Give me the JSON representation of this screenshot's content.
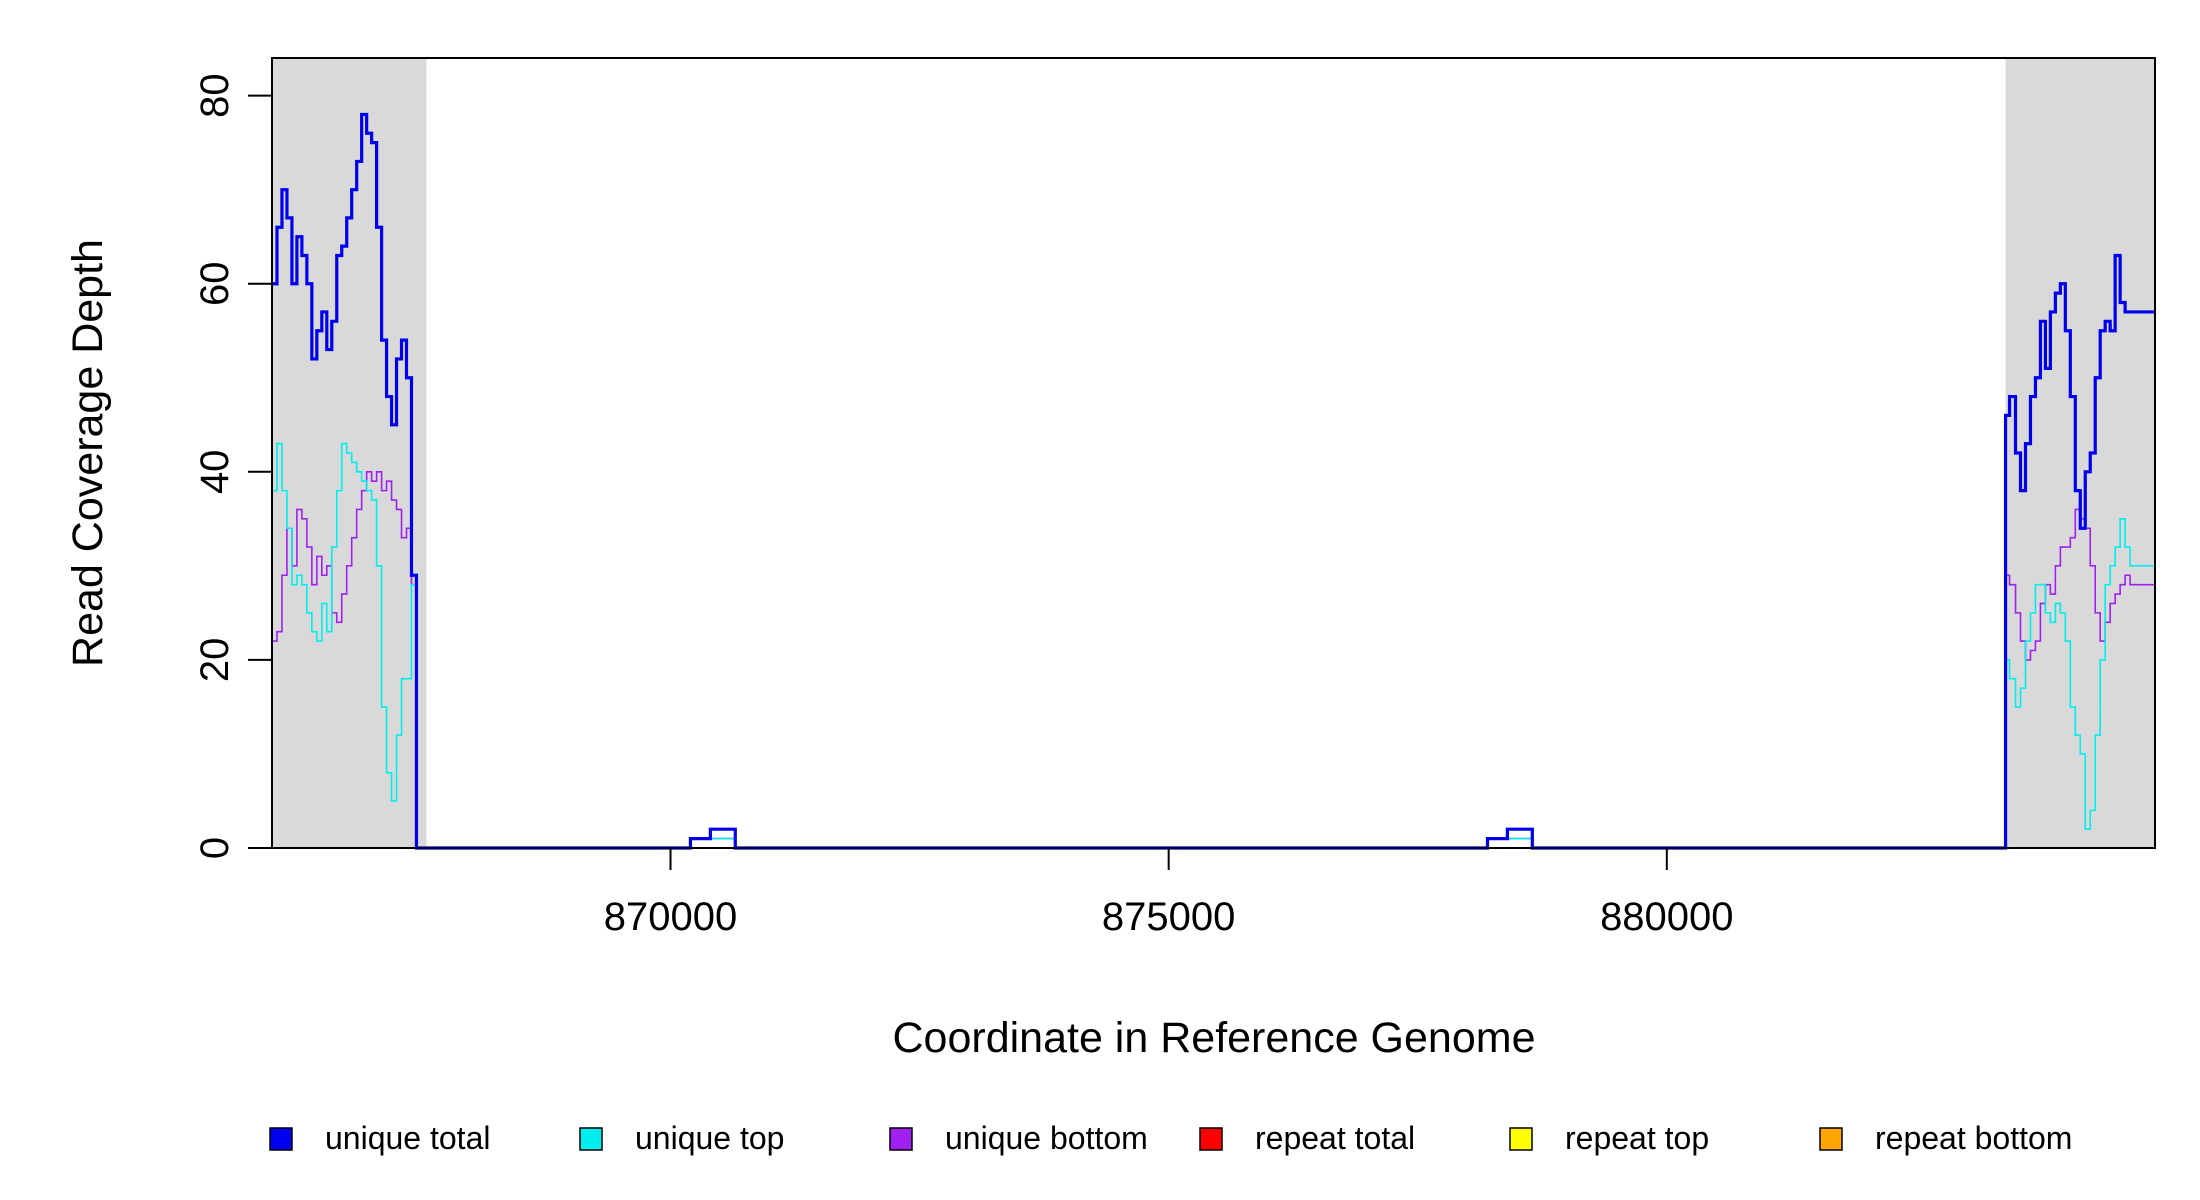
{
  "chart_data": {
    "type": "line",
    "xlabel": "Coordinate in Reference Genome",
    "ylabel": "Read Coverage Depth",
    "xlim": [
      866000,
      884900
    ],
    "ylim": [
      0,
      84
    ],
    "x_ticks": [
      {
        "value": 870000,
        "label": "870000"
      },
      {
        "value": 875000,
        "label": "875000"
      },
      {
        "value": 880000,
        "label": "880000"
      }
    ],
    "y_ticks": [
      {
        "value": 0,
        "label": "0"
      },
      {
        "value": 20,
        "label": "20"
      },
      {
        "value": 40,
        "label": "40"
      },
      {
        "value": 60,
        "label": "60"
      },
      {
        "value": 80,
        "label": "80"
      }
    ],
    "shaded_regions": [
      [
        866000,
        867550
      ],
      [
        883400,
        884900
      ]
    ],
    "shade_color": "#d9d9d9",
    "grid": false,
    "legend_position": "bottom",
    "series": [
      {
        "name": "unique total",
        "color": "#0000ee",
        "weight": "bold",
        "x": [
          866000,
          866050,
          866100,
          866150,
          866200,
          866250,
          866300,
          866350,
          866400,
          866450,
          866500,
          866550,
          866600,
          866650,
          866700,
          866750,
          866800,
          866850,
          866900,
          866950,
          867000,
          867050,
          867100,
          867150,
          867200,
          867250,
          867300,
          867350,
          867400,
          867450,
          867500,
          867530,
          867560,
          870200,
          870400,
          870650,
          878200,
          878400,
          878650,
          883400,
          883440,
          883500,
          883550,
          883600,
          883650,
          883700,
          883750,
          883800,
          883850,
          883900,
          883950,
          884000,
          884050,
          884100,
          884150,
          884200,
          884250,
          884300,
          884350,
          884400,
          884450,
          884500,
          884550,
          884600,
          884650,
          884700,
          884750,
          884800,
          884850
        ],
        "y": [
          60,
          66,
          70,
          67,
          60,
          65,
          63,
          60,
          52,
          55,
          57,
          53,
          56,
          63,
          64,
          67,
          70,
          73,
          78,
          76,
          75,
          66,
          54,
          48,
          45,
          52,
          54,
          50,
          29,
          0,
          0,
          0,
          0,
          1,
          2,
          0,
          1,
          2,
          0,
          46,
          48,
          42,
          38,
          43,
          48,
          50,
          56,
          51,
          57,
          59,
          60,
          55,
          48,
          38,
          34,
          40,
          42,
          50,
          55,
          56,
          55,
          63,
          58,
          57,
          57,
          57,
          57,
          57,
          57
        ]
      },
      {
        "name": "unique top",
        "color": "#00eeee",
        "weight": "normal",
        "x": [
          866000,
          866050,
          866100,
          866150,
          866200,
          866250,
          866300,
          866350,
          866400,
          866450,
          866500,
          866550,
          866600,
          866650,
          866700,
          866750,
          866800,
          866850,
          866900,
          866950,
          867000,
          867050,
          867100,
          867150,
          867200,
          867250,
          867300,
          867350,
          867400,
          867450,
          867500,
          867530,
          867560,
          870200,
          870400,
          870650,
          878200,
          878400,
          878650,
          883400,
          883440,
          883500,
          883550,
          883600,
          883650,
          883700,
          883750,
          883800,
          883850,
          883900,
          883950,
          884000,
          884050,
          884100,
          884150,
          884200,
          884250,
          884300,
          884350,
          884400,
          884450,
          884500,
          884550,
          884600,
          884650,
          884700,
          884750,
          884800,
          884850
        ],
        "y": [
          38,
          43,
          38,
          34,
          28,
          29,
          28,
          25,
          23,
          22,
          26,
          23,
          32,
          38,
          43,
          42,
          41,
          40,
          39,
          38,
          37,
          30,
          15,
          8,
          5,
          12,
          18,
          18,
          28,
          0,
          0,
          0,
          0,
          1,
          1,
          0,
          1,
          1,
          0,
          20,
          18,
          15,
          17,
          22,
          25,
          28,
          28,
          25,
          24,
          26,
          25,
          22,
          15,
          12,
          10,
          2,
          4,
          12,
          20,
          28,
          30,
          32,
          35,
          32,
          30,
          30,
          30,
          30,
          30
        ]
      },
      {
        "name": "unique bottom",
        "color": "#a020f0",
        "weight": "normal",
        "x": [
          866000,
          866050,
          866100,
          866150,
          866200,
          866250,
          866300,
          866350,
          866400,
          866450,
          866500,
          866550,
          866600,
          866650,
          866700,
          866750,
          866800,
          866850,
          866900,
          866950,
          867000,
          867050,
          867100,
          867150,
          867200,
          867250,
          867300,
          867350,
          867400,
          867450,
          867500,
          867530,
          867560,
          870200,
          870400,
          870650,
          878200,
          878400,
          878650,
          883400,
          883440,
          883500,
          883550,
          883600,
          883650,
          883700,
          883750,
          883800,
          883850,
          883900,
          883950,
          884000,
          884050,
          884100,
          884150,
          884200,
          884250,
          884300,
          884350,
          884400,
          884450,
          884500,
          884550,
          884600,
          884650,
          884700,
          884750,
          884800,
          884850
        ],
        "y": [
          22,
          23,
          29,
          34,
          30,
          36,
          35,
          32,
          28,
          31,
          29,
          30,
          25,
          24,
          27,
          30,
          33,
          36,
          38,
          40,
          39,
          40,
          38,
          39,
          37,
          36,
          33,
          34,
          28,
          0,
          0,
          0,
          0,
          1,
          1,
          0,
          1,
          1,
          0,
          29,
          28,
          25,
          22,
          20,
          21,
          22,
          26,
          28,
          27,
          30,
          32,
          32,
          33,
          36,
          35,
          34,
          30,
          25,
          22,
          24,
          26,
          27,
          28,
          29,
          28,
          28,
          28,
          28,
          28
        ]
      },
      {
        "name": "repeat total",
        "color": "#ff0000",
        "weight": "normal",
        "x": [
          866000,
          884900
        ],
        "y": [
          0,
          0
        ]
      },
      {
        "name": "repeat top",
        "color": "#ffff00",
        "weight": "normal",
        "x": [
          866000,
          884900
        ],
        "y": [
          0,
          0
        ]
      },
      {
        "name": "repeat bottom",
        "color": "#ffa500",
        "weight": "normal",
        "x": [
          866000,
          884900
        ],
        "y": [
          0,
          0
        ]
      }
    ]
  }
}
